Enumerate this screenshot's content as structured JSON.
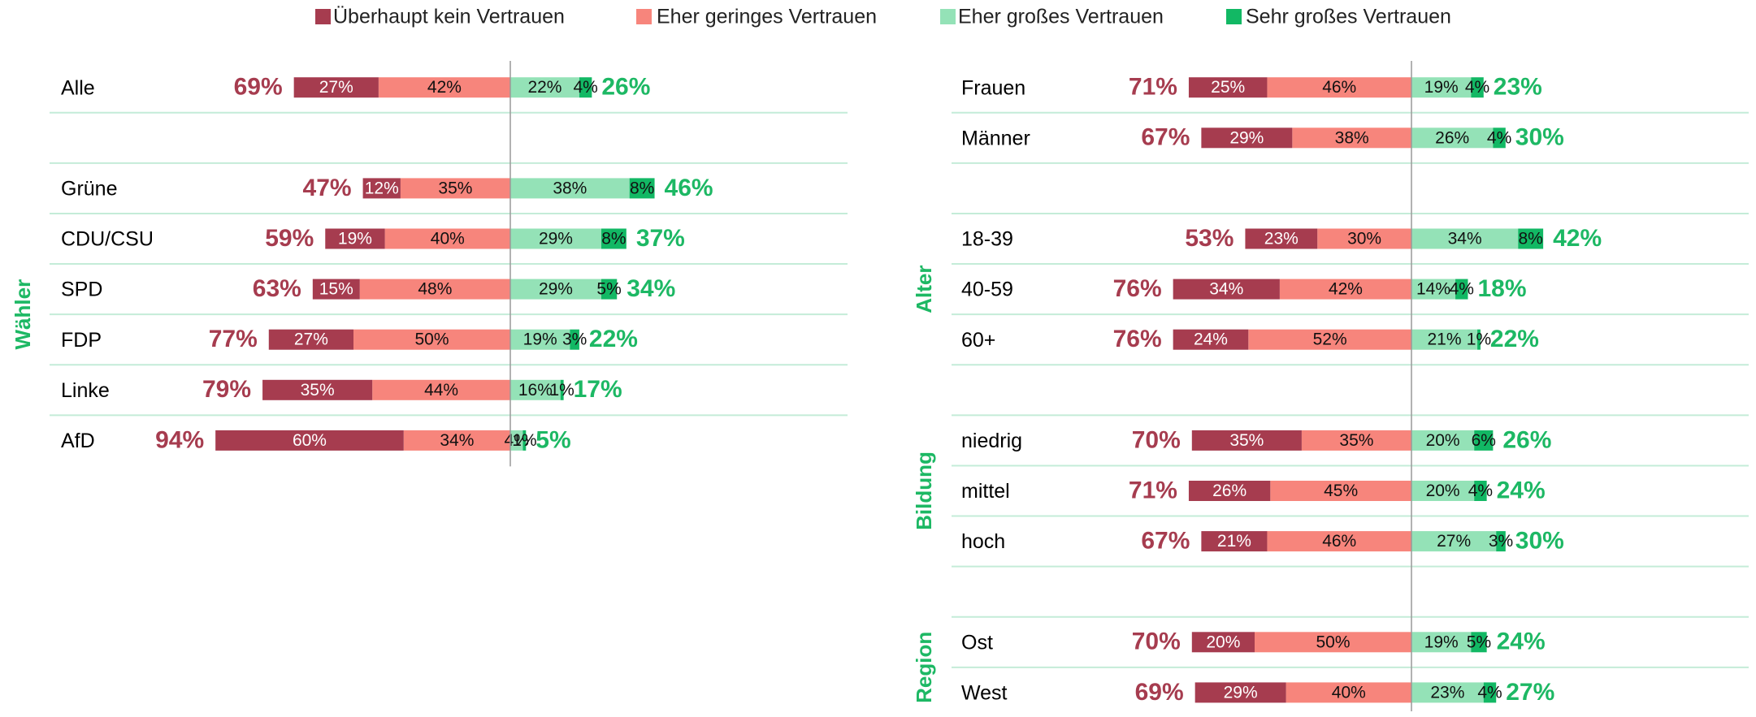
{
  "chart_data": {
    "type": "diverging_bar",
    "series": [
      {
        "name": "Überhaupt kein Vertrauen",
        "color": "#a63c4f"
      },
      {
        "name": "Eher geringes Vertrauen",
        "color": "#f7857c"
      },
      {
        "name": "Eher großes Vertrauen",
        "color": "#94e2b7"
      },
      {
        "name": "Sehr großes Vertrauen",
        "color": "#12b864"
      }
    ],
    "panels": [
      {
        "sections": [
          {
            "rows": [
              {
                "category": "Alle",
                "values": [
                  27,
                  42,
                  22,
                  4
                ],
                "value_labels": [
                  "27%",
                  "42%",
                  "22%",
                  "4%"
                ],
                "totals": [
                  69,
                  26
                ],
                "total_labels": [
                  "69%",
                  "26%"
                ]
              }
            ]
          },
          {
            "label": "Wähler",
            "rows": [
              {
                "category": "Grüne",
                "values": [
                  12,
                  35,
                  38,
                  8
                ],
                "value_labels": [
                  "12%",
                  "35%",
                  "38%",
                  "8%"
                ],
                "totals": [
                  47,
                  46
                ],
                "total_labels": [
                  "47%",
                  "46%"
                ]
              },
              {
                "category": "CDU/CSU",
                "values": [
                  19,
                  40,
                  29,
                  8
                ],
                "value_labels": [
                  "19%",
                  "40%",
                  "29%",
                  "8%"
                ],
                "totals": [
                  59,
                  37
                ],
                "total_labels": [
                  "59%",
                  "37%"
                ]
              },
              {
                "category": "SPD",
                "values": [
                  15,
                  48,
                  29,
                  5
                ],
                "value_labels": [
                  "15%",
                  "48%",
                  "29%",
                  "5%"
                ],
                "totals": [
                  63,
                  34
                ],
                "total_labels": [
                  "63%",
                  "34%"
                ]
              },
              {
                "category": "FDP",
                "values": [
                  27,
                  50,
                  19,
                  3
                ],
                "value_labels": [
                  "27%",
                  "50%",
                  "19%",
                  "3%"
                ],
                "totals": [
                  77,
                  22
                ],
                "total_labels": [
                  "77%",
                  "22%"
                ]
              },
              {
                "category": "Linke",
                "values": [
                  35,
                  44,
                  16,
                  1
                ],
                "value_labels": [
                  "35%",
                  "44%",
                  "16%",
                  "1%"
                ],
                "totals": [
                  79,
                  17
                ],
                "total_labels": [
                  "79%",
                  "17%"
                ]
              },
              {
                "category": "AfD",
                "values": [
                  60,
                  34,
                  4,
                  1
                ],
                "value_labels": [
                  "60%",
                  "34%",
                  "4%",
                  "1%"
                ],
                "totals": [
                  94,
                  5
                ],
                "total_labels": [
                  "94%",
                  "5%"
                ]
              }
            ]
          }
        ]
      },
      {
        "sections": [
          {
            "rows": [
              {
                "category": "Frauen",
                "values": [
                  25,
                  46,
                  19,
                  4
                ],
                "value_labels": [
                  "25%",
                  "46%",
                  "19%",
                  "4%"
                ],
                "totals": [
                  71,
                  23
                ],
                "total_labels": [
                  "71%",
                  "23%"
                ]
              },
              {
                "category": "Männer",
                "values": [
                  29,
                  38,
                  26,
                  4
                ],
                "value_labels": [
                  "29%",
                  "38%",
                  "26%",
                  "4%"
                ],
                "totals": [
                  67,
                  30
                ],
                "total_labels": [
                  "67%",
                  "30%"
                ]
              }
            ]
          },
          {
            "label": "Alter",
            "rows": [
              {
                "category": "18-39",
                "values": [
                  23,
                  30,
                  34,
                  8
                ],
                "value_labels": [
                  "23%",
                  "30%",
                  "34%",
                  "8%"
                ],
                "totals": [
                  53,
                  42
                ],
                "total_labels": [
                  "53%",
                  "42%"
                ]
              },
              {
                "category": "40-59",
                "values": [
                  34,
                  42,
                  14,
                  4
                ],
                "value_labels": [
                  "34%",
                  "42%",
                  "14%",
                  "4%"
                ],
                "totals": [
                  76,
                  18
                ],
                "total_labels": [
                  "76%",
                  "18%"
                ]
              },
              {
                "category": "60+",
                "values": [
                  24,
                  52,
                  21,
                  1
                ],
                "value_labels": [
                  "24%",
                  "52%",
                  "21%",
                  "1%"
                ],
                "totals": [
                  76,
                  22
                ],
                "total_labels": [
                  "76%",
                  "22%"
                ]
              }
            ]
          },
          {
            "label": "Bildung",
            "rows": [
              {
                "category": "niedrig",
                "values": [
                  35,
                  35,
                  20,
                  6
                ],
                "value_labels": [
                  "35%",
                  "35%",
                  "20%",
                  "6%"
                ],
                "totals": [
                  70,
                  26
                ],
                "total_labels": [
                  "70%",
                  "26%"
                ]
              },
              {
                "category": "mittel",
                "values": [
                  26,
                  45,
                  20,
                  4
                ],
                "value_labels": [
                  "26%",
                  "45%",
                  "20%",
                  "4%"
                ],
                "totals": [
                  71,
                  24
                ],
                "total_labels": [
                  "71%",
                  "24%"
                ]
              },
              {
                "category": "hoch",
                "values": [
                  21,
                  46,
                  27,
                  3
                ],
                "value_labels": [
                  "21%",
                  "46%",
                  "27%",
                  "3%"
                ],
                "totals": [
                  67,
                  30
                ],
                "total_labels": [
                  "67%",
                  "30%"
                ]
              }
            ]
          },
          {
            "label": "Region",
            "rows": [
              {
                "category": "Ost",
                "values": [
                  20,
                  50,
                  19,
                  5
                ],
                "value_labels": [
                  "20%",
                  "50%",
                  "19%",
                  "5%"
                ],
                "totals": [
                  70,
                  24
                ],
                "total_labels": [
                  "70%",
                  "24%"
                ]
              },
              {
                "category": "West",
                "values": [
                  29,
                  40,
                  23,
                  4
                ],
                "value_labels": [
                  "29%",
                  "40%",
                  "23%",
                  "4%"
                ],
                "totals": [
                  69,
                  27
                ],
                "total_labels": [
                  "69%",
                  "27%"
                ]
              }
            ]
          }
        ]
      }
    ]
  }
}
